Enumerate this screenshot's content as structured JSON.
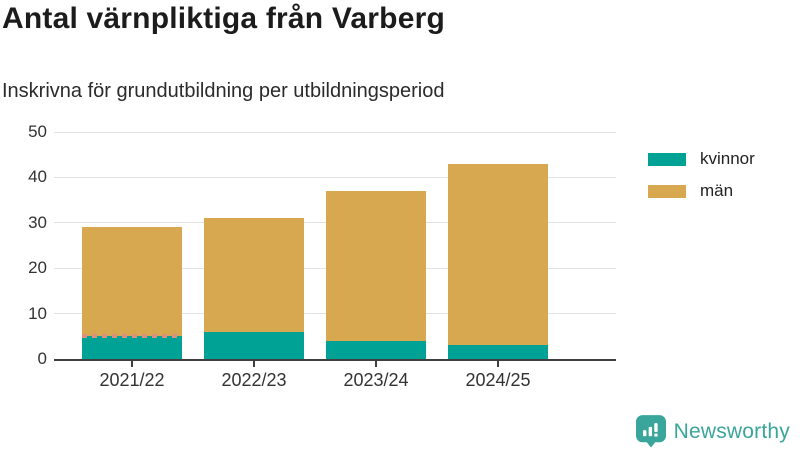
{
  "chart_data": {
    "type": "bar",
    "variant": "stacked-vertical",
    "title": "Antal värnpliktiga från Varberg",
    "subtitle": "Inskrivna för grundutbildning per utbildningsperiod",
    "categories": [
      "2021/22",
      "2022/23",
      "2023/24",
      "2024/25"
    ],
    "series": [
      {
        "name": "kvinnor",
        "color": "#00a295",
        "values": [
          5,
          6,
          4,
          3
        ]
      },
      {
        "name": "män",
        "color": "#d8a850",
        "values": [
          24,
          25,
          33,
          40
        ]
      }
    ],
    "totals": [
      29,
      31,
      37,
      43
    ],
    "ylim": [
      0,
      50
    ],
    "yticks": [
      0,
      10,
      20,
      30,
      40,
      50
    ],
    "grid": true,
    "legend_position": "right",
    "annotations": {
      "first_bar_kvinnor_top_edge": "dashed (approximate value)",
      "dash_color": "#dc8f7e"
    },
    "colors": {
      "axis": "#3f3f3f",
      "gridline": "#e3e3e3",
      "tick_label": "#333333"
    }
  },
  "logo": {
    "text": "Newsworthy",
    "color": "#3aa69b",
    "icon": "newsworthy-bars-bubble-icon"
  }
}
